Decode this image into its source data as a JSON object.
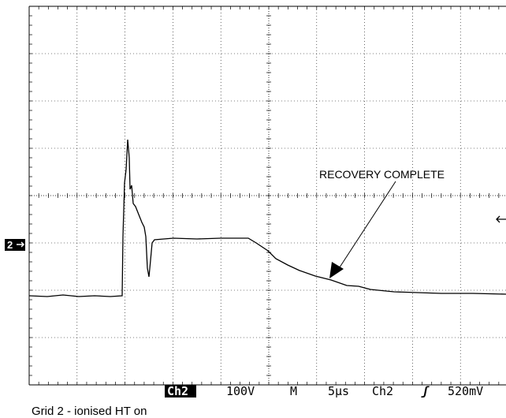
{
  "annotation": "RECOVERY COMPLETE",
  "channel_marker": "2",
  "status_bar": {
    "channel": "Ch2",
    "volts_per_div": "100V",
    "mode": "M",
    "time_per_div": "5µs",
    "trigger_channel": "Ch2",
    "trigger_symbol": "ʃ",
    "trigger_level": "520mV"
  },
  "caption": "Grid 2 - ionised  HT on"
}
